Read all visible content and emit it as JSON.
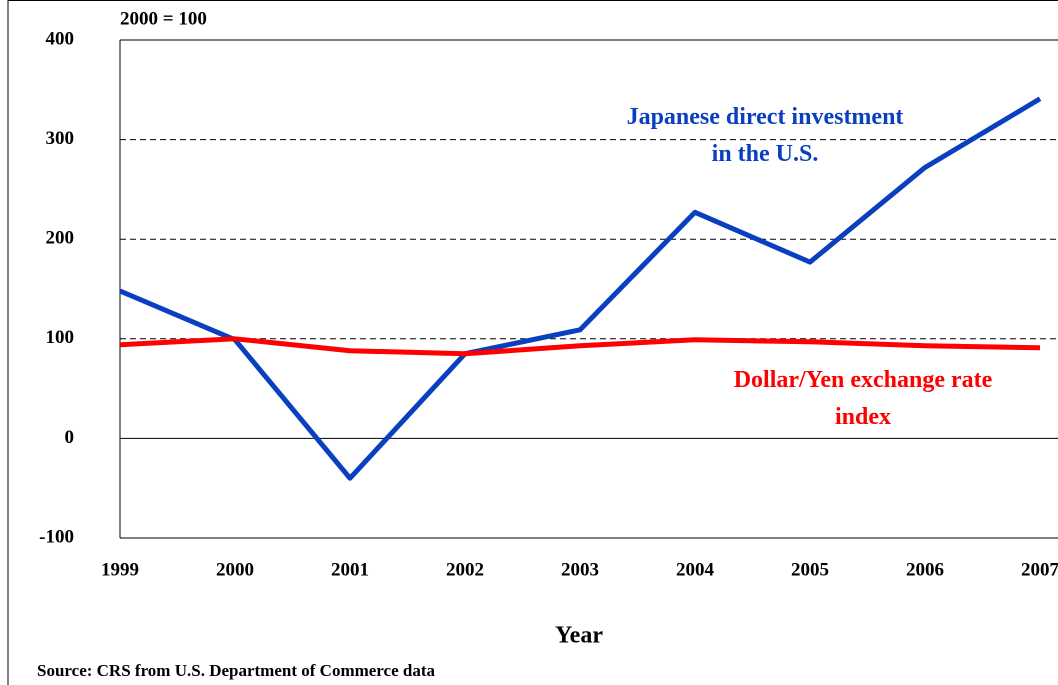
{
  "chart_data": {
    "type": "line",
    "annotation": "2000 = 100",
    "xlabel": "Year",
    "source": "Source: CRS from U.S. Department of Commerce data",
    "categories": [
      "1999",
      "2000",
      "2001",
      "2002",
      "2003",
      "2004",
      "2005",
      "2006",
      "2007"
    ],
    "series": [
      {
        "name": "Japanese direct investment in the U.S.",
        "color": "#0a3fbf",
        "values": [
          148,
          99,
          -40,
          85,
          109,
          227,
          177,
          272,
          341
        ]
      },
      {
        "name": "Dollar/Yen exchange rate index",
        "color": "#ff0000",
        "values": [
          94,
          100,
          88,
          85,
          93,
          99,
          97,
          93,
          91
        ]
      }
    ],
    "ylim": [
      -100,
      400
    ],
    "yticks": [
      -100,
      0,
      100,
      200,
      300,
      400
    ],
    "grid": true
  }
}
